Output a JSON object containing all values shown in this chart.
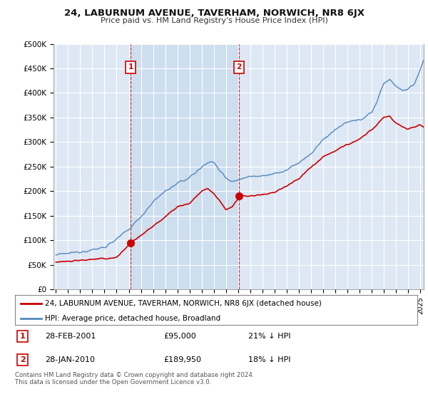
{
  "title": "24, LABURNUM AVENUE, TAVERHAM, NORWICH, NR8 6JX",
  "subtitle": "Price paid vs. HM Land Registry's House Price Index (HPI)",
  "ylabel_ticks": [
    "£0",
    "£50K",
    "£100K",
    "£150K",
    "£200K",
    "£250K",
    "£300K",
    "£350K",
    "£400K",
    "£450K",
    "£500K"
  ],
  "ytick_values": [
    0,
    50000,
    100000,
    150000,
    200000,
    250000,
    300000,
    350000,
    400000,
    450000,
    500000
  ],
  "ylim": [
    0,
    500000
  ],
  "xlim_start": 1994.8,
  "xlim_end": 2025.3,
  "purchase1_date": 2001.16,
  "purchase1_price": 95000,
  "purchase1_label": "1",
  "purchase2_date": 2010.08,
  "purchase2_price": 189950,
  "purchase2_label": "2",
  "red_color": "#cc0000",
  "blue_color": "#5588bb",
  "blue_fill_color": "#ccddef",
  "annotation_box_color": "#cc0000",
  "legend_label_red": "24, LABURNUM AVENUE, TAVERHAM, NORWICH, NR8 6JX (detached house)",
  "legend_label_blue": "HPI: Average price, detached house, Broadland",
  "table_row1": [
    "1",
    "28-FEB-2001",
    "£95,000",
    "21% ↓ HPI"
  ],
  "table_row2": [
    "2",
    "28-JAN-2010",
    "£189,950",
    "18% ↓ HPI"
  ],
  "footer": "Contains HM Land Registry data © Crown copyright and database right 2024.\nThis data is licensed under the Open Government Licence v3.0.",
  "background_color": "#dde8f4",
  "plot_bg_color": "#dde8f4",
  "grid_color": "#ffffff"
}
